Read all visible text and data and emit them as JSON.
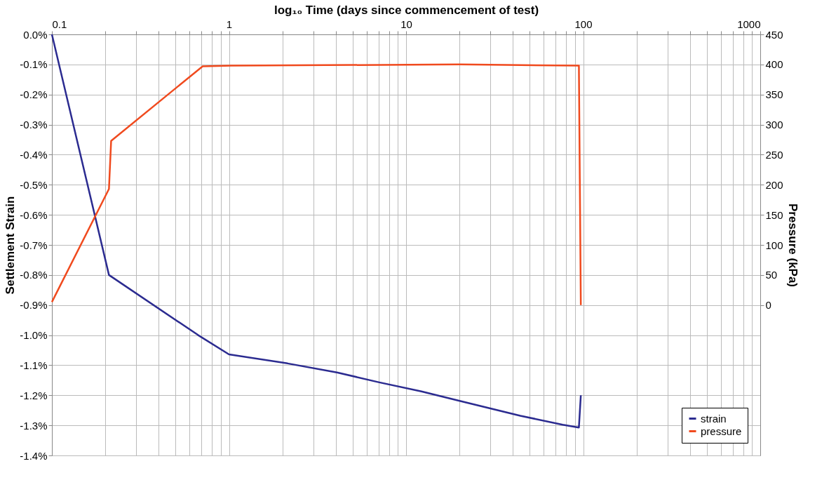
{
  "chart_data": {
    "type": "line",
    "xlabel": "log₁₀ Time (days since commencement of test)",
    "ylabel": "Settlement Strain",
    "y2label": "Pressure (kPa)",
    "log": "x",
    "xlim": [
      0.1,
      1000
    ],
    "xticks": [
      0.1,
      {
        "value": 0.2,
        "label": null
      },
      {
        "value": 0.3,
        "label": null
      },
      {
        "value": 0.4,
        "label": null
      },
      {
        "value": 0.5,
        "label": null
      },
      {
        "value": 0.6,
        "label": null
      },
      {
        "value": 0.7,
        "label": null
      },
      {
        "value": 0.8,
        "label": null
      },
      {
        "value": 0.9,
        "label": null
      },
      1,
      {
        "value": 2,
        "label": null
      },
      {
        "value": 3,
        "label": null
      },
      {
        "value": 4,
        "label": null
      },
      {
        "value": 5,
        "label": null
      },
      {
        "value": 6,
        "label": null
      },
      {
        "value": 7,
        "label": null
      },
      {
        "value": 8,
        "label": null
      },
      {
        "value": 9,
        "label": null
      },
      10,
      {
        "value": 20,
        "label": null
      },
      {
        "value": 30,
        "label": null
      },
      {
        "value": 40,
        "label": null
      },
      {
        "value": 50,
        "label": null
      },
      {
        "value": 60,
        "label": null
      },
      {
        "value": 70,
        "label": null
      },
      {
        "value": 80,
        "label": null
      },
      {
        "value": 90,
        "label": null
      },
      100,
      {
        "value": 200,
        "label": null
      },
      {
        "value": 300,
        "label": null
      },
      {
        "value": 400,
        "label": null
      },
      {
        "value": 500,
        "label": null
      },
      {
        "value": 600,
        "label": null
      },
      {
        "value": 700,
        "label": null
      },
      {
        "value": 800,
        "label": null
      },
      {
        "value": 900,
        "label": null
      },
      1000
    ],
    "ylim": [
      -1.4,
      0
    ],
    "yticks": [
      {
        "value": 0,
        "label": "0.0%"
      },
      {
        "value": -0.1,
        "label": "-0.1%"
      },
      {
        "value": -0.2,
        "label": "-0.2%"
      },
      {
        "value": -0.3,
        "label": "-0.3%"
      },
      {
        "value": -0.4,
        "label": "-0.4%"
      },
      {
        "value": -0.5,
        "label": "-0.5%"
      },
      {
        "value": -0.6,
        "label": "-0.6%"
      },
      {
        "value": -0.7,
        "label": "-0.7%"
      },
      {
        "value": -0.8,
        "label": "-0.8%"
      },
      {
        "value": -0.9,
        "label": "-0.9%"
      },
      {
        "value": -1.0,
        "label": "-1.0%"
      },
      {
        "value": -1.1,
        "label": "-1.1%"
      },
      {
        "value": -1.2,
        "label": "-1.2%"
      },
      {
        "value": -1.3,
        "label": "-1.3%"
      },
      {
        "value": -1.4,
        "label": "-1.4%"
      }
    ],
    "y2lim": [
      -250,
      450
    ],
    "y2ticks": [
      0,
      50,
      100,
      150,
      200,
      250,
      300,
      350,
      400,
      450
    ],
    "grid": true,
    "legend": "bottom right",
    "marker": "none",
    "line_style": "solid",
    "series": [
      {
        "name": "strain",
        "color": "#2b2b90",
        "x": [
          0.1,
          0.21,
          0.67,
          1.0,
          2.14,
          4.07,
          7.06,
          12.2,
          21.2,
          44.2,
          76.6,
          94.6,
          97
        ],
        "values": [
          0,
          -0.8,
          -1.0,
          -1.064,
          -1.094,
          -1.124,
          -1.157,
          -1.187,
          -1.222,
          -1.268,
          -1.298,
          -1.307,
          -1.2
        ]
      },
      {
        "name": "pressure",
        "color": "#f04a1e",
        "axis": "y2",
        "x": [
          0.1,
          0.21,
          0.216,
          0.71,
          1.03,
          20,
          94.6,
          97
        ],
        "values": [
          5,
          193,
          273,
          397,
          398,
          400,
          398,
          0
        ]
      }
    ]
  }
}
